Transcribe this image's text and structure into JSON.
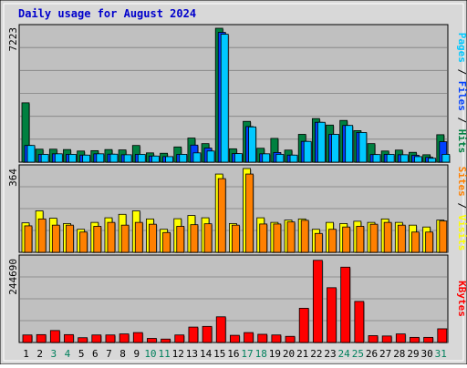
{
  "title": "Daily usage for August 2024",
  "colors": {
    "title": "#0000cc",
    "hits": "#008040",
    "files": "#0040ff",
    "pages": "#00c8ff",
    "visits": "#ffff00",
    "sites": "#ff8000",
    "kbytes": "#ff0000",
    "weekend_day": "#00805c",
    "plot_bg": "#c0c0c0",
    "frame_bg": "#d8d8d8"
  },
  "chart_data": [
    {
      "type": "bar",
      "panel": "hits-files-pages",
      "series_label_parts": [
        "Pages",
        "Files",
        "Hits"
      ],
      "series_label_separator": " / ",
      "ymax_label": "7223",
      "ylim": [
        0,
        7223
      ],
      "categories": [
        "1",
        "2",
        "3",
        "4",
        "5",
        "6",
        "7",
        "8",
        "9",
        "10",
        "11",
        "12",
        "13",
        "14",
        "15",
        "16",
        "17",
        "18",
        "19",
        "20",
        "21",
        "22",
        "23",
        "24",
        "25",
        "26",
        "27",
        "28",
        "29",
        "30",
        "31"
      ],
      "series": [
        {
          "name": "Hits",
          "values": [
            3200,
            700,
            700,
            680,
            600,
            620,
            680,
            660,
            900,
            500,
            480,
            820,
            1300,
            1000,
            7223,
            720,
            2200,
            750,
            1280,
            650,
            1500,
            2350,
            2000,
            2250,
            1700,
            1000,
            600,
            650,
            530,
            400,
            1480
          ]
        },
        {
          "name": "Files",
          "values": [
            900,
            420,
            450,
            420,
            380,
            450,
            430,
            400,
            420,
            330,
            300,
            420,
            920,
            760,
            7000,
            460,
            1920,
            450,
            520,
            380,
            1120,
            2150,
            1500,
            1980,
            1600,
            410,
            420,
            400,
            370,
            260,
            1100
          ]
        },
        {
          "name": "Pages",
          "values": [
            900,
            420,
            450,
            420,
            380,
            450,
            430,
            400,
            420,
            330,
            300,
            420,
            500,
            600,
            6900,
            460,
            1900,
            450,
            420,
            380,
            1120,
            2150,
            1500,
            1980,
            1600,
            410,
            420,
            400,
            300,
            210,
            420
          ]
        }
      ]
    },
    {
      "type": "bar",
      "panel": "visits-sites",
      "series_label_parts": [
        "Sites",
        "Visits"
      ],
      "series_label_separator": " / ",
      "ymax_label": "364",
      "ylim": [
        0,
        364
      ],
      "categories": [
        "1",
        "2",
        "3",
        "4",
        "5",
        "6",
        "7",
        "8",
        "9",
        "10",
        "11",
        "12",
        "13",
        "14",
        "15",
        "16",
        "17",
        "18",
        "19",
        "20",
        "21",
        "22",
        "23",
        "24",
        "25",
        "26",
        "27",
        "28",
        "29",
        "30",
        "31"
      ],
      "series": [
        {
          "name": "Visits",
          "values": [
            128,
            180,
            148,
            125,
            100,
            130,
            150,
            165,
            180,
            145,
            100,
            146,
            160,
            150,
            340,
            125,
            364,
            150,
            130,
            140,
            145,
            100,
            130,
            125,
            135,
            130,
            145,
            130,
            118,
            110,
            140
          ]
        },
        {
          "name": "Sites",
          "values": [
            115,
            145,
            118,
            118,
            88,
            113,
            130,
            118,
            130,
            122,
            86,
            113,
            120,
            124,
            320,
            118,
            340,
            123,
            123,
            132,
            139,
            82,
            100,
            110,
            113,
            122,
            130,
            118,
            88,
            88,
            136
          ]
        }
      ]
    },
    {
      "type": "bar",
      "panel": "kbytes",
      "series_label_parts": [
        "KBytes"
      ],
      "series_label_separator": " / ",
      "ymax_label": "244690",
      "ylim": [
        0,
        244690
      ],
      "categories": [
        "1",
        "2",
        "3",
        "4",
        "5",
        "6",
        "7",
        "8",
        "9",
        "10",
        "11",
        "12",
        "13",
        "14",
        "15",
        "16",
        "17",
        "18",
        "19",
        "20",
        "21",
        "22",
        "23",
        "24",
        "25",
        "26",
        "27",
        "28",
        "29",
        "30",
        "31"
      ],
      "series": [
        {
          "name": "KBytes",
          "values": [
            22000,
            23000,
            35000,
            23000,
            14000,
            22000,
            22000,
            25000,
            29000,
            12000,
            10000,
            22000,
            45000,
            47000,
            75000,
            21000,
            29000,
            24000,
            22000,
            18000,
            100000,
            240000,
            160000,
            220000,
            120000,
            20000,
            19000,
            25000,
            15000,
            15000,
            40000
          ]
        }
      ]
    }
  ],
  "x_axis": {
    "days": [
      "1",
      "2",
      "3",
      "4",
      "5",
      "6",
      "7",
      "8",
      "9",
      "10",
      "11",
      "12",
      "13",
      "14",
      "15",
      "16",
      "17",
      "18",
      "19",
      "20",
      "21",
      "22",
      "23",
      "24",
      "25",
      "26",
      "27",
      "28",
      "29",
      "30",
      "31"
    ],
    "weekend_days": [
      "3",
      "4",
      "10",
      "11",
      "17",
      "18",
      "24",
      "25",
      "31"
    ]
  }
}
